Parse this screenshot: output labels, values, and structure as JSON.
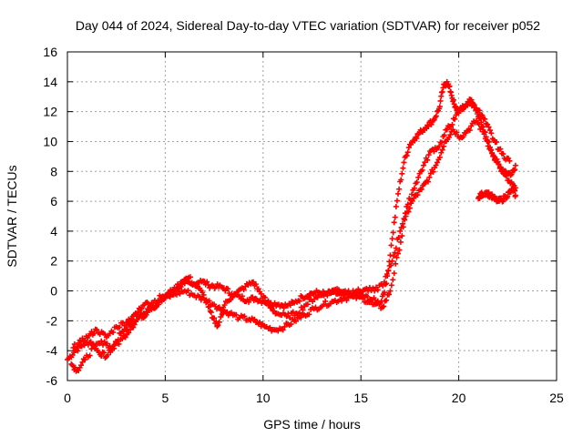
{
  "chart_data": {
    "type": "scatter",
    "title": "Day 044 of 2024, Sidereal Day-to-day VTEC variation (SDTVAR) for receiver p052",
    "xlabel": "GPS time / hours",
    "ylabel": "SDTVAR / TECUs",
    "xlim": [
      0,
      25
    ],
    "ylim": [
      -6,
      16
    ],
    "xticks": [
      0,
      5,
      10,
      15,
      20,
      25
    ],
    "yticks": [
      -6,
      -4,
      -2,
      0,
      2,
      4,
      6,
      8,
      10,
      12,
      14,
      16
    ],
    "grid": true,
    "marker": "+",
    "color": "#ff0000",
    "series": [
      {
        "name": "track-1",
        "x": [
          0.0,
          0.4,
          0.8,
          1.2,
          1.6,
          2.0,
          2.4,
          2.8,
          3.2,
          3.6,
          4.0,
          4.4,
          4.8,
          5.2,
          5.6,
          6.0,
          6.4,
          6.8,
          7.2,
          7.6,
          8.0,
          8.4,
          8.8,
          9.2,
          9.6,
          10.0,
          10.4,
          10.8,
          11.2,
          11.6,
          12.0,
          12.4,
          12.8,
          13.2,
          13.6,
          14.0,
          14.4,
          14.8,
          15.2,
          15.6,
          16.0,
          16.3,
          16.6,
          16.9,
          17.2,
          17.5,
          17.8,
          18.1,
          18.4,
          18.7,
          19.0,
          19.2,
          19.4,
          19.6,
          19.8,
          20.0,
          20.3,
          20.6,
          20.9,
          21.2,
          21.5,
          21.8,
          22.1,
          22.4,
          22.7,
          22.9
        ],
        "y": [
          -4.6,
          -4.0,
          -3.6,
          -3.4,
          -4.1,
          -4.4,
          -3.6,
          -2.7,
          -2.3,
          -1.4,
          -0.8,
          -1.1,
          -0.6,
          -0.1,
          0.2,
          0.5,
          0.4,
          0.7,
          0.4,
          0.3,
          0.2,
          -0.2,
          -0.4,
          -0.6,
          -0.5,
          -0.7,
          -0.8,
          -0.9,
          -1.0,
          -0.8,
          -0.4,
          -0.2,
          -0.1,
          -0.2,
          -0.1,
          -0.3,
          -0.2,
          -0.1,
          -0.4,
          -0.6,
          -0.8,
          0.5,
          3.5,
          6.5,
          8.6,
          9.8,
          10.3,
          10.7,
          11.1,
          11.4,
          12.2,
          13.6,
          14.0,
          13.3,
          12.3,
          12.0,
          12.3,
          12.8,
          12.2,
          11.0,
          10.0,
          9.0,
          8.3,
          8.0,
          7.8,
          8.4
        ]
      },
      {
        "name": "track-2",
        "x": [
          0.2,
          0.5,
          0.9,
          1.4,
          1.9,
          2.3,
          2.8,
          3.3,
          3.7,
          4.1,
          4.5,
          5.0,
          5.5,
          6.0,
          6.5,
          7.0,
          7.5,
          7.9,
          8.3,
          8.8,
          9.3,
          9.7,
          10.1,
          10.6,
          11.1,
          11.6,
          12.1,
          12.6,
          13.1,
          13.6,
          14.1,
          14.6,
          15.1,
          15.6,
          16.1,
          16.5,
          16.9,
          17.3,
          17.7,
          18.1,
          18.5,
          18.9,
          19.3,
          19.7,
          20.1,
          20.5,
          20.9,
          21.3,
          21.7,
          22.1,
          22.5,
          22.9
        ],
        "y": [
          -4.9,
          -5.3,
          -4.6,
          -3.7,
          -3.4,
          -3.9,
          -3.2,
          -2.4,
          -1.7,
          -1.2,
          -1.0,
          -0.5,
          -0.2,
          0.0,
          -0.3,
          -0.6,
          -0.9,
          -1.3,
          -1.5,
          -1.8,
          -1.9,
          -2.1,
          -2.4,
          -2.6,
          -2.4,
          -2.0,
          -1.6,
          -1.2,
          -0.9,
          -0.7,
          -0.5,
          -0.4,
          -0.5,
          -0.9,
          -1.1,
          0.0,
          2.5,
          5.0,
          6.2,
          6.8,
          7.6,
          8.6,
          10.0,
          10.8,
          10.3,
          10.8,
          11.4,
          10.5,
          9.2,
          8.2,
          7.4,
          6.9
        ]
      },
      {
        "name": "track-3",
        "x": [
          0.3,
          0.7,
          1.1,
          1.5,
          2.0,
          2.5,
          3.0,
          3.4,
          3.9,
          4.3,
          4.8,
          5.3,
          5.8,
          6.2,
          6.7,
          7.1,
          7.4,
          7.7,
          8.1,
          8.6,
          9.1,
          9.5,
          9.9,
          10.3,
          10.7,
          11.2,
          11.7,
          12.2,
          12.7,
          13.2,
          13.7,
          14.2,
          14.7,
          15.2,
          15.7,
          16.2,
          16.6,
          17.0,
          17.4,
          17.8,
          18.2,
          18.6,
          19.0,
          19.4,
          19.8,
          20.2,
          20.6,
          21.0,
          21.4,
          21.8,
          22.2,
          22.6
        ],
        "y": [
          -3.8,
          -3.4,
          -3.0,
          -2.6,
          -3.1,
          -2.4,
          -2.1,
          -1.6,
          -1.8,
          -0.8,
          -0.4,
          -0.2,
          0.6,
          0.9,
          0.2,
          -0.6,
          -1.8,
          -2.3,
          -0.7,
          -0.2,
          0.3,
          0.6,
          -0.2,
          -1.0,
          -1.5,
          -1.7,
          -1.5,
          -0.9,
          -0.4,
          -0.2,
          0.1,
          0.0,
          -0.1,
          0.1,
          0.0,
          0.6,
          2.0,
          4.0,
          5.8,
          7.2,
          8.4,
          9.4,
          9.7,
          10.8,
          11.5,
          12.4,
          12.6,
          12.1,
          11.2,
          10.1,
          9.2,
          8.7
        ]
      },
      {
        "name": "track-4",
        "x": [
          21.0,
          21.2,
          21.4,
          21.6,
          21.8,
          22.0,
          22.2,
          22.4,
          22.6,
          22.8,
          22.9
        ],
        "y": [
          6.2,
          6.5,
          6.6,
          6.4,
          6.2,
          6.0,
          6.1,
          6.3,
          6.6,
          6.8,
          6.4
        ]
      }
    ]
  }
}
